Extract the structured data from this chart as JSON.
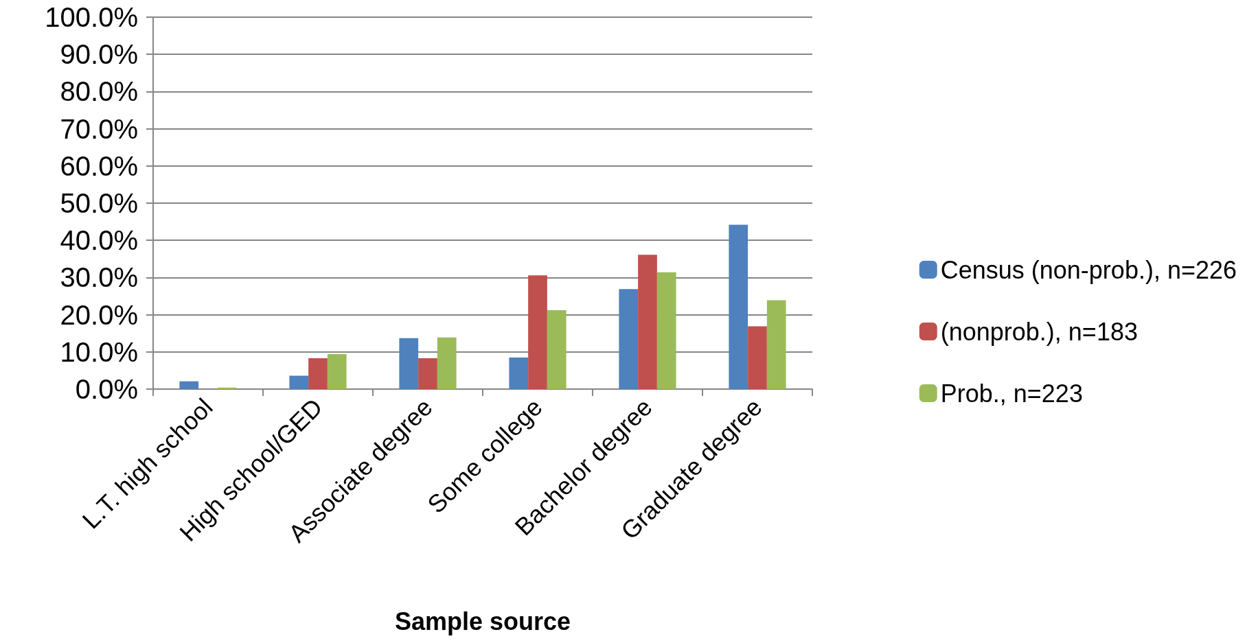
{
  "chart_data": {
    "type": "bar",
    "xlabel": "Sample source",
    "categories": [
      "L.T. high school",
      "High school/GED",
      "Associate degree",
      "Some college",
      "Bachelor degree",
      "Graduate degree"
    ],
    "series": [
      {
        "name": "Census (non-prob.), n=226",
        "color": "#4f81bd",
        "values": [
          2.1,
          3.6,
          13.7,
          8.5,
          26.9,
          44.2
        ]
      },
      {
        "name": "(nonprob.), n=183",
        "color": "#c0504d",
        "values": [
          0,
          8.3,
          8.3,
          30.6,
          36.1,
          16.9
        ]
      },
      {
        "name": "Prob., n=223",
        "color": "#9bbb59",
        "values": [
          0.4,
          9.4,
          13.9,
          21.2,
          31.4,
          23.9
        ]
      }
    ],
    "ylim": [
      0,
      100
    ],
    "yticks": [
      {
        "value": 0,
        "label": "0.0%"
      },
      {
        "value": 10,
        "label": "10.0%"
      },
      {
        "value": 20,
        "label": "20.0%"
      },
      {
        "value": 30,
        "label": "30.0%"
      },
      {
        "value": 40,
        "label": "40.0%"
      },
      {
        "value": 50,
        "label": "50.0%"
      },
      {
        "value": 60,
        "label": "60.0%"
      },
      {
        "value": 70,
        "label": "70.0%"
      },
      {
        "value": 80,
        "label": "80.0%"
      },
      {
        "value": 90,
        "label": "90.0%"
      },
      {
        "value": 100,
        "label": "100.0%"
      }
    ],
    "grid": "y",
    "legend": "right"
  }
}
